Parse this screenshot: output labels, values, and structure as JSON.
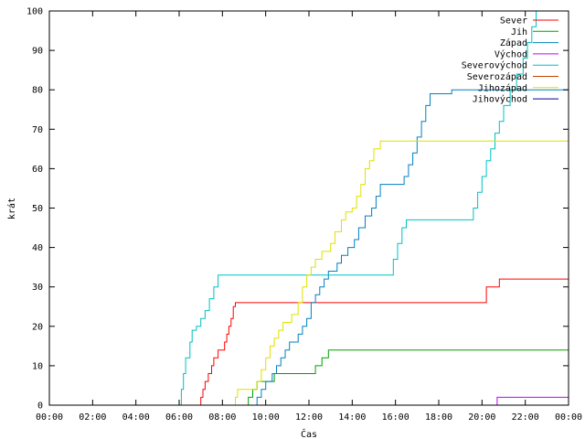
{
  "chart_data": {
    "type": "line",
    "xlabel": "Čas",
    "ylabel": "krát",
    "xlim": [
      0,
      24
    ],
    "ylim": [
      0,
      100
    ],
    "x_ticks": [
      {
        "value": 0,
        "label": "00:00"
      },
      {
        "value": 2,
        "label": "02:00"
      },
      {
        "value": 4,
        "label": "04:00"
      },
      {
        "value": 6,
        "label": "06:00"
      },
      {
        "value": 8,
        "label": "08:00"
      },
      {
        "value": 10,
        "label": "10:00"
      },
      {
        "value": 12,
        "label": "12:00"
      },
      {
        "value": 14,
        "label": "14:00"
      },
      {
        "value": 16,
        "label": "16:00"
      },
      {
        "value": 18,
        "label": "18:00"
      },
      {
        "value": 20,
        "label": "20:00"
      },
      {
        "value": 22,
        "label": "22:00"
      },
      {
        "value": 24,
        "label": "00:00"
      }
    ],
    "y_ticks": [
      0,
      10,
      20,
      30,
      40,
      50,
      60,
      70,
      80,
      90,
      100
    ],
    "grid": false,
    "legend_position": "top-right",
    "series": [
      {
        "name": "Sever",
        "color": "#ff0000",
        "points": [
          [
            0,
            0
          ],
          [
            6.9,
            0
          ],
          [
            7.0,
            2
          ],
          [
            7.1,
            4
          ],
          [
            7.2,
            6
          ],
          [
            7.35,
            8
          ],
          [
            7.5,
            10
          ],
          [
            7.6,
            12
          ],
          [
            7.8,
            14
          ],
          [
            8.1,
            16
          ],
          [
            8.2,
            18
          ],
          [
            8.3,
            20
          ],
          [
            8.4,
            22
          ],
          [
            8.5,
            25
          ],
          [
            8.6,
            26
          ],
          [
            20.1,
            26
          ],
          [
            20.2,
            30
          ],
          [
            20.7,
            30
          ],
          [
            20.8,
            32
          ],
          [
            24,
            32
          ]
        ]
      },
      {
        "name": "Jih",
        "color": "#00a000",
        "points": [
          [
            0,
            0
          ],
          [
            9.1,
            0
          ],
          [
            9.2,
            2
          ],
          [
            9.4,
            4
          ],
          [
            9.6,
            6
          ],
          [
            10.3,
            6
          ],
          [
            10.4,
            8
          ],
          [
            12.1,
            8
          ],
          [
            12.3,
            10
          ],
          [
            12.6,
            12
          ],
          [
            12.9,
            14
          ],
          [
            24,
            14
          ]
        ]
      },
      {
        "name": "Západ",
        "color": "#0080c0",
        "points": [
          [
            0,
            0
          ],
          [
            9.5,
            0
          ],
          [
            9.6,
            2
          ],
          [
            9.8,
            4
          ],
          [
            10.0,
            6
          ],
          [
            10.3,
            8
          ],
          [
            10.5,
            10
          ],
          [
            10.7,
            12
          ],
          [
            10.9,
            14
          ],
          [
            11.1,
            16
          ],
          [
            11.5,
            18
          ],
          [
            11.7,
            20
          ],
          [
            11.9,
            22
          ],
          [
            12.1,
            26
          ],
          [
            12.3,
            28
          ],
          [
            12.5,
            30
          ],
          [
            12.7,
            32
          ],
          [
            12.9,
            34
          ],
          [
            13.3,
            36
          ],
          [
            13.5,
            38
          ],
          [
            13.8,
            40
          ],
          [
            14.1,
            42
          ],
          [
            14.3,
            45
          ],
          [
            14.6,
            48
          ],
          [
            14.9,
            50
          ],
          [
            15.1,
            53
          ],
          [
            15.3,
            56
          ],
          [
            16.2,
            56
          ],
          [
            16.4,
            58
          ],
          [
            16.6,
            61
          ],
          [
            16.8,
            64
          ],
          [
            17.0,
            68
          ],
          [
            17.2,
            72
          ],
          [
            17.4,
            76
          ],
          [
            17.6,
            79
          ],
          [
            18.6,
            80
          ],
          [
            24,
            80
          ]
        ]
      },
      {
        "name": "Východ",
        "color": "#c000ff",
        "points": [
          [
            0,
            0
          ],
          [
            20.6,
            0
          ],
          [
            20.7,
            2
          ],
          [
            24,
            2
          ]
        ]
      },
      {
        "name": "Severovýchod",
        "color": "#00c0c0",
        "points": [
          [
            0,
            0
          ],
          [
            6.0,
            0
          ],
          [
            6.1,
            4
          ],
          [
            6.2,
            8
          ],
          [
            6.3,
            12
          ],
          [
            6.5,
            16
          ],
          [
            6.6,
            19
          ],
          [
            6.8,
            20
          ],
          [
            7.0,
            22
          ],
          [
            7.2,
            24
          ],
          [
            7.4,
            27
          ],
          [
            7.6,
            30
          ],
          [
            7.8,
            33
          ],
          [
            15.7,
            33
          ],
          [
            15.9,
            37
          ],
          [
            16.1,
            41
          ],
          [
            16.3,
            45
          ],
          [
            16.5,
            47
          ],
          [
            19.4,
            47
          ],
          [
            19.6,
            50
          ],
          [
            19.8,
            54
          ],
          [
            20.0,
            58
          ],
          [
            20.2,
            62
          ],
          [
            20.4,
            65
          ],
          [
            20.6,
            69
          ],
          [
            20.8,
            72
          ],
          [
            21.0,
            76
          ],
          [
            21.3,
            80
          ],
          [
            21.6,
            84
          ],
          [
            21.9,
            88
          ],
          [
            22.1,
            92
          ],
          [
            22.3,
            96
          ],
          [
            22.5,
            100
          ]
        ]
      },
      {
        "name": "Severozápad",
        "color": "#c04000",
        "points": []
      },
      {
        "name": "Jihozápad",
        "color": "#e0e000",
        "points": [
          [
            0,
            0
          ],
          [
            8.5,
            0
          ],
          [
            8.6,
            2
          ],
          [
            8.7,
            4
          ],
          [
            9.5,
            4
          ],
          [
            9.6,
            6
          ],
          [
            9.8,
            9
          ],
          [
            10.0,
            12
          ],
          [
            10.2,
            15
          ],
          [
            10.4,
            17
          ],
          [
            10.6,
            19
          ],
          [
            10.8,
            21
          ],
          [
            11.2,
            23
          ],
          [
            11.5,
            26
          ],
          [
            11.7,
            30
          ],
          [
            11.9,
            33
          ],
          [
            12.1,
            35
          ],
          [
            12.3,
            37
          ],
          [
            12.6,
            39
          ],
          [
            13.0,
            41
          ],
          [
            13.2,
            44
          ],
          [
            13.5,
            47
          ],
          [
            13.7,
            49
          ],
          [
            14.0,
            50
          ],
          [
            14.2,
            53
          ],
          [
            14.4,
            56
          ],
          [
            14.6,
            60
          ],
          [
            14.8,
            62
          ],
          [
            15.0,
            65
          ],
          [
            15.3,
            67
          ],
          [
            24,
            67
          ]
        ]
      },
      {
        "name": "Jihovýchod",
        "color": "#0000a0",
        "points": []
      }
    ]
  }
}
